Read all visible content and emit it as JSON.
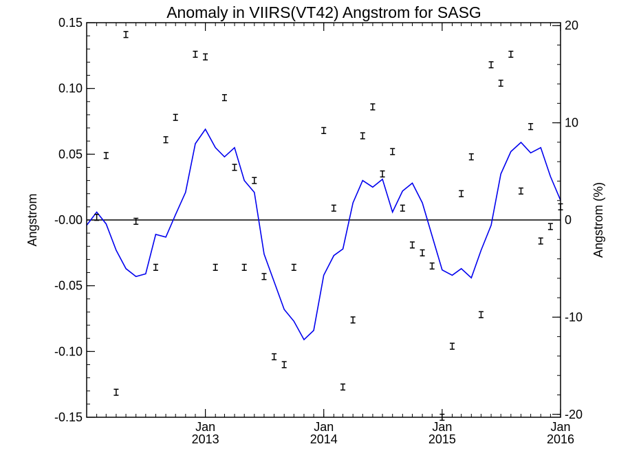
{
  "chart_data": {
    "type": "line",
    "title": "Anomaly in VIIRS(VT42) Angstrom for SASG",
    "xlabel": "",
    "ylabel": "Angstrom",
    "ylabel_right": "Angstrom (%)",
    "xlim": [
      "2012-01-01",
      "2016-01-01"
    ],
    "ylim": [
      -0.15,
      0.15
    ],
    "ylim_right": [
      -20.3,
      20.3
    ],
    "x_ticks": [
      {
        "date": "2013-01-01",
        "month": "Jan",
        "year": "2013"
      },
      {
        "date": "2014-01-01",
        "month": "Jan",
        "year": "2014"
      },
      {
        "date": "2015-01-01",
        "month": "Jan",
        "year": "2015"
      },
      {
        "date": "2016-01-01",
        "month": "Jan",
        "year": "2016"
      }
    ],
    "y_ticks": [
      {
        "value": 0.15,
        "label": "0.15"
      },
      {
        "value": 0.1,
        "label": "0.10"
      },
      {
        "value": 0.05,
        "label": "0.05"
      },
      {
        "value": 0.0,
        "label": "-0.00"
      },
      {
        "value": -0.05,
        "label": "-0.05"
      },
      {
        "value": -0.1,
        "label": "-0.10"
      },
      {
        "value": -0.15,
        "label": "-0.15"
      }
    ],
    "y_ticks_right": [
      {
        "value": 20,
        "label": "20"
      },
      {
        "value": 10,
        "label": "10"
      },
      {
        "value": 0,
        "label": "0"
      },
      {
        "value": -10,
        "label": "-10"
      },
      {
        "value": -20,
        "label": "-20"
      }
    ],
    "zero_line": 0,
    "grid": false,
    "legend": "none",
    "colors": {
      "smoothed": "#0000ee",
      "points": "#000000",
      "zero_line": "#000000"
    },
    "series": [
      {
        "style": "line",
        "x": [
          "2012-01-01",
          "2012-02-01",
          "2012-03-01",
          "2012-04-01",
          "2012-05-01",
          "2012-06-01",
          "2012-07-01",
          "2012-08-01",
          "2012-09-01",
          "2012-10-01",
          "2012-11-01",
          "2012-12-01",
          "2013-01-01",
          "2013-02-01",
          "2013-03-01",
          "2013-04-01",
          "2013-05-01",
          "2013-06-01",
          "2013-07-01",
          "2013-08-01",
          "2013-09-01",
          "2013-10-01",
          "2013-11-01",
          "2013-12-01",
          "2014-01-01",
          "2014-02-01",
          "2014-03-01",
          "2014-04-01",
          "2014-05-01",
          "2014-06-01",
          "2014-07-01",
          "2014-08-01",
          "2014-09-01",
          "2014-10-01",
          "2014-11-01",
          "2014-12-01",
          "2015-01-01",
          "2015-02-01",
          "2015-03-01",
          "2015-04-01",
          "2015-05-01",
          "2015-06-01",
          "2015-07-01",
          "2015-08-01",
          "2015-09-01",
          "2015-10-01",
          "2015-11-01",
          "2015-12-01",
          "2016-01-01"
        ],
        "values": [
          -0.004,
          0.006,
          -0.003,
          -0.023,
          -0.037,
          -0.043,
          -0.041,
          -0.011,
          -0.013,
          0.004,
          0.021,
          0.058,
          0.069,
          0.055,
          0.048,
          0.055,
          0.03,
          0.021,
          -0.026,
          -0.047,
          -0.068,
          -0.077,
          -0.091,
          -0.084,
          -0.042,
          -0.027,
          -0.022,
          0.013,
          0.03,
          0.025,
          0.031,
          0.006,
          0.022,
          0.028,
          0.013,
          -0.012,
          -0.038,
          -0.042,
          -0.037,
          -0.044,
          -0.023,
          -0.004,
          0.035,
          0.052,
          0.059,
          0.051,
          0.055,
          0.033,
          0.015
        ]
      },
      {
        "style": "points-with-error-bars",
        "error": 0.0015,
        "x": [
          "2012-02-01",
          "2012-03-01",
          "2012-04-01",
          "2012-05-01",
          "2012-06-01",
          "2012-08-01",
          "2012-09-01",
          "2012-10-01",
          "2012-12-01",
          "2013-01-01",
          "2013-02-01",
          "2013-03-01",
          "2013-04-01",
          "2013-05-01",
          "2013-06-01",
          "2013-07-01",
          "2013-08-01",
          "2013-09-01",
          "2013-10-01",
          "2014-01-01",
          "2014-02-01",
          "2014-03-01",
          "2014-04-01",
          "2014-05-01",
          "2014-06-01",
          "2014-07-01",
          "2014-08-01",
          "2014-09-01",
          "2014-10-01",
          "2014-11-01",
          "2014-12-01",
          "2015-01-01",
          "2015-02-01",
          "2015-03-01",
          "2015-04-01",
          "2015-05-01",
          "2015-06-01",
          "2015-07-01",
          "2015-08-01",
          "2015-09-01",
          "2015-10-01",
          "2015-11-01",
          "2015-12-01",
          "2016-01-01"
        ],
        "values": [
          0.002,
          0.049,
          -0.131,
          0.141,
          -0.001,
          -0.036,
          0.061,
          0.078,
          0.126,
          0.124,
          -0.036,
          0.093,
          0.04,
          -0.036,
          0.03,
          -0.043,
          -0.104,
          -0.11,
          -0.036,
          0.068,
          0.009,
          -0.127,
          -0.076,
          0.064,
          0.086,
          0.035,
          0.052,
          0.009,
          -0.019,
          -0.025,
          -0.035,
          -0.15,
          -0.096,
          0.02,
          0.048,
          -0.072,
          0.118,
          0.104,
          0.126,
          0.022,
          0.071,
          -0.016,
          -0.005,
          0.01
        ]
      }
    ]
  }
}
